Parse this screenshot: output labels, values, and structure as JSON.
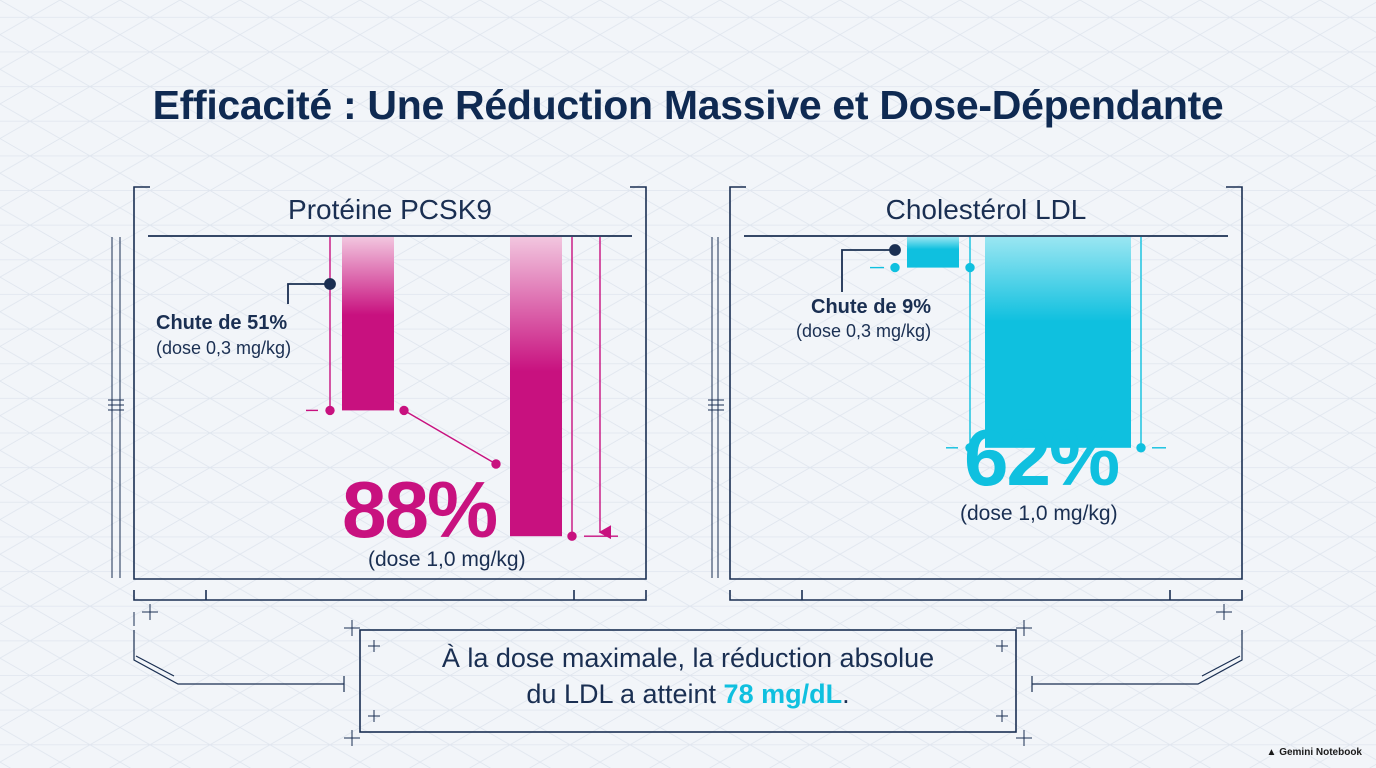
{
  "title": "Efficacité : Une Réduction Massive et Dose-Dépendante",
  "colors": {
    "navy": "#1a2f52",
    "magenta": "#c8117f",
    "cyan": "#0fc0df",
    "grid": "#dde3ec"
  },
  "chart_data": [
    {
      "type": "bar",
      "title": "Protéine PCSK9",
      "categories": [
        "0,3 mg/kg",
        "1,0 mg/kg"
      ],
      "values": [
        51,
        88
      ],
      "unit": "%",
      "ylim": [
        0,
        100
      ],
      "color": "#c8117f",
      "annotations": {
        "low_label": "Chute de 51%",
        "low_dose": "(dose 0,3 mg/kg)",
        "high_value": "88%",
        "high_dose": "(dose 1,0 mg/kg)"
      }
    },
    {
      "type": "bar",
      "title": "Cholestérol LDL",
      "categories": [
        "0,3 mg/kg",
        "1,0 mg/kg"
      ],
      "values": [
        9,
        62
      ],
      "unit": "%",
      "ylim": [
        0,
        100
      ],
      "color": "#0fc0df",
      "annotations": {
        "low_label": "Chute de 9%",
        "low_dose": "(dose 0,3 mg/kg)",
        "high_value": "62%",
        "high_dose": "(dose 1,0 mg/kg)"
      }
    }
  ],
  "summary": {
    "line1": "À la dose maximale, la réduction absolue",
    "line2_prefix": "du LDL a atteint ",
    "line2_highlight": "78 mg/dL",
    "line2_suffix": "."
  },
  "brand": {
    "text": "Gemini Notebook",
    "icon": "sparkle-icon"
  }
}
